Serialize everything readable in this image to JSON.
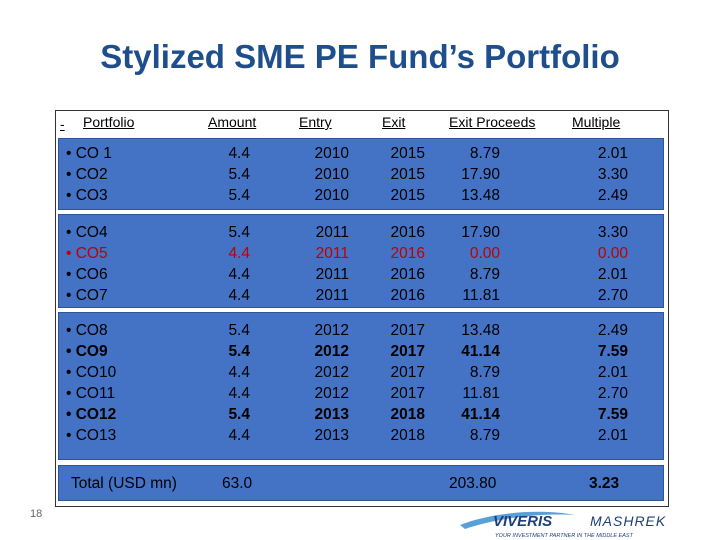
{
  "title": "Stylized SME PE Fund’s Portfolio",
  "headers": {
    "dash": "-",
    "portfolio": "Portfolio",
    "amount": "Amount",
    "entry": "Entry",
    "exit": "Exit",
    "exit_proceeds": "Exit Proceeds",
    "multiple": "Multiple"
  },
  "groups": [
    {
      "rows": [
        {
          "name": "• CO 1",
          "amount": "4.4",
          "entry": "2010",
          "exit": "2015",
          "proceeds": "8.79",
          "multiple": "2.01",
          "style": ""
        },
        {
          "name": "• CO2",
          "amount": "5.4",
          "entry": "2010",
          "exit": "2015",
          "proceeds": "17.90",
          "multiple": "3.30",
          "style": ""
        },
        {
          "name": "• CO3",
          "amount": "5.4",
          "entry": "2010",
          "exit": "2015",
          "proceeds": "13.48",
          "multiple": "2.49",
          "style": ""
        }
      ]
    },
    {
      "rows": [
        {
          "name": "• CO4",
          "amount": "5.4",
          "entry": "2011",
          "exit": "2016",
          "proceeds": "17.90",
          "multiple": "3.30",
          "style": ""
        },
        {
          "name": "• CO5",
          "amount": "4.4",
          "entry": "2011",
          "exit": "2016",
          "proceeds": "0.00",
          "multiple": "0.00",
          "style": "red"
        },
        {
          "name": "• CO6",
          "amount": "4.4",
          "entry": "2011",
          "exit": "2016",
          "proceeds": "8.79",
          "multiple": "2.01",
          "style": ""
        },
        {
          "name": "• CO7",
          "amount": "4.4",
          "entry": "2011",
          "exit": "2016",
          "proceeds": "11.81",
          "multiple": "2.70",
          "style": ""
        }
      ]
    },
    {
      "rows": [
        {
          "name": "• CO8",
          "amount": "5.4",
          "entry": "2012",
          "exit": "2017",
          "proceeds": "13.48",
          "multiple": "2.49",
          "style": ""
        },
        {
          "name": "• CO9",
          "amount": "5.4",
          "entry": "2012",
          "exit": "2017",
          "proceeds": "41.14",
          "multiple": "7.59",
          "style": "bold"
        },
        {
          "name": "• CO10",
          "amount": "4.4",
          "entry": "2012",
          "exit": "2017",
          "proceeds": "8.79",
          "multiple": "2.01",
          "style": ""
        },
        {
          "name": "• CO11",
          "amount": "4.4",
          "entry": "2012",
          "exit": "2017",
          "proceeds": "11.81",
          "multiple": "2.70",
          "style": ""
        },
        {
          "name": "• CO12",
          "amount": "5.4",
          "entry": "2013",
          "exit": "2018",
          "proceeds": "41.14",
          "multiple": "7.59",
          "style": "bold"
        },
        {
          "name": "• CO13",
          "amount": "4.4",
          "entry": "2013",
          "exit": "2018",
          "proceeds": "8.79",
          "multiple": "2.01",
          "style": ""
        }
      ]
    }
  ],
  "total": {
    "label": "Total (USD mn)",
    "amount": "63.0",
    "proceeds": "203.80",
    "multiple": "3.23"
  },
  "page_number": "18",
  "logo": {
    "brand_left": "VIVERIS",
    "brand_right": "MASHREK",
    "tagline": "YOUR INVESTMENT PARTNER IN THE MIDDLE EAST",
    "colors": {
      "primary": "#1f3f7a",
      "accent": "#5aa0d8"
    }
  },
  "colors": {
    "title": "#1f4e8c",
    "group_fill": "#4472c4",
    "highlight": "#c00000"
  }
}
